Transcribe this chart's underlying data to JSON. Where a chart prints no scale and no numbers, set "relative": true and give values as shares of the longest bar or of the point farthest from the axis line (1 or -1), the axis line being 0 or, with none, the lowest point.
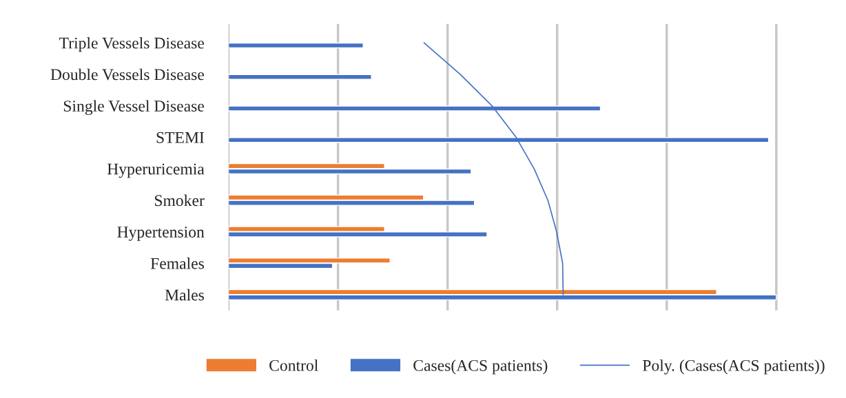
{
  "chart_data": {
    "type": "bar",
    "orientation": "horizontal",
    "relative": true,
    "grid": "x",
    "legend": "bottom",
    "categories": [
      "Triple Vessels Disease",
      "Double Vessels Disease",
      "Single Vessel Disease",
      "STEMI",
      "Hyperuricemia",
      "Smoker",
      "Hypertension",
      "Females",
      "Males"
    ],
    "series": [
      {
        "name": "Control",
        "color": "#ed7d31",
        "values": [
          null,
          null,
          null,
          null,
          0.285,
          0.356,
          0.285,
          0.295,
          0.891
        ]
      },
      {
        "name": "Cases(ACS patients)",
        "color": "#4472c4",
        "values": [
          0.246,
          0.261,
          0.679,
          0.986,
          0.443,
          0.449,
          0.472,
          0.19,
          1.0
        ]
      },
      {
        "name": "Poly. (Cases(ACS patients))",
        "type": "line",
        "color": "#4472c4",
        "values": [
          0.357,
          0.423,
          0.481,
          0.525,
          0.558,
          0.583,
          0.599,
          0.61,
          0.611
        ]
      }
    ]
  }
}
